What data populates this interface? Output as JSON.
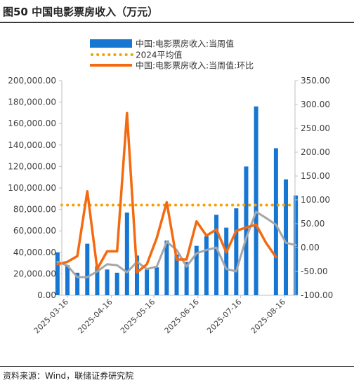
{
  "figure": {
    "title": "图50 中国电影票房收入（万元）",
    "source": "资料来源：Wind，联储证券研究院"
  },
  "chart_data": {
    "type": "bar",
    "legend": [
      {
        "name": "中国:电影票房收入:当周值",
        "style": "bar"
      },
      {
        "name": "2024平均值",
        "style": "dotted"
      },
      {
        "name": "中国:电影票房收入:当周值:环比",
        "style": "line"
      }
    ],
    "x_tick_labels": [
      "2025-03-16",
      "2025-04-16",
      "2025-05-16",
      "2025-06-16",
      "2025-07-16",
      "2025-08-16"
    ],
    "y_left": {
      "min": 0,
      "max": 200000,
      "step": 20000,
      "ticks": [
        "0.00",
        "20,000.00",
        "40,000.00",
        "60,000.00",
        "80,000.00",
        "100,000.00",
        "120,000.00",
        "140,000.00",
        "160,000.00",
        "180,000.00",
        "200,000.00"
      ]
    },
    "y_right": {
      "min": -100,
      "max": 350,
      "step": 50,
      "ticks": [
        "-100.00",
        "-50.00",
        "0.00",
        "50.00",
        "100.00",
        "150.00",
        "200.00",
        "250.00",
        "300.00",
        "350.00"
      ]
    },
    "x": [
      "2025-03-09",
      "2025-03-16",
      "2025-03-23",
      "2025-03-30",
      "2025-04-06",
      "2025-04-13",
      "2025-04-20",
      "2025-04-27",
      "2025-05-04",
      "2025-05-11",
      "2025-05-18",
      "2025-05-25",
      "2025-06-01",
      "2025-06-08",
      "2025-06-15",
      "2025-06-22",
      "2025-06-29",
      "2025-07-06",
      "2025-07-13",
      "2025-07-20",
      "2025-07-27",
      "2025-08-03",
      "2025-08-10",
      "2025-08-17",
      "2025-08-24"
    ],
    "series": [
      {
        "name": "中国:电影票房收入:当周值",
        "axis": "left",
        "color": "#1677d2",
        "values": [
          40000,
          28000,
          21000,
          48000,
          27000,
          24000,
          21000,
          77000,
          37000,
          24000,
          26000,
          51000,
          38000,
          31000,
          46000,
          55000,
          75000,
          63000,
          81000,
          120000,
          176000,
          null,
          137000,
          108000,
          93000
        ]
      },
      {
        "name": "2024平均值",
        "axis": "left",
        "color": "#f5a000",
        "value": 84000
      },
      {
        "name": "中国:电影票房收入:当周值:环比",
        "axis": "right",
        "color": "#f46a10",
        "values": [
          -35,
          -30,
          -18,
          118,
          -45,
          -8,
          -8,
          282,
          -52,
          -35,
          20,
          95,
          -25,
          -25,
          55,
          25,
          38,
          -10,
          35,
          42,
          48,
          10,
          -20,
          null,
          null
        ]
      },
      {
        "name": "grey line",
        "axis": "right",
        "color": "#a6a6a6",
        "values": [
          -30,
          -38,
          -62,
          -62,
          -50,
          -35,
          -37,
          -52,
          -30,
          -45,
          -40,
          12,
          -5,
          -40,
          -12,
          -5,
          0,
          -45,
          -50,
          20,
          75,
          62,
          48,
          10,
          5
        ]
      }
    ]
  }
}
